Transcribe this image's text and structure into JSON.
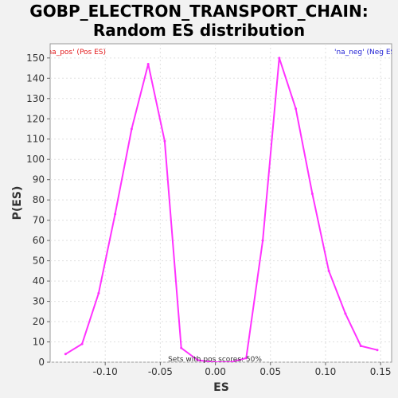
{
  "chart_data": {
    "type": "line",
    "title_line1": "GOBP_ELECTRON_TRANSPORT_CHAIN:",
    "title_line2": "Random ES distribution",
    "xlabel": "ES",
    "ylabel": "P(ES)",
    "xlim": [
      -0.15,
      0.16
    ],
    "ylim": [
      0,
      157
    ],
    "x_ticks": [
      -0.1,
      -0.05,
      0.0,
      0.05,
      0.1,
      0.15
    ],
    "x_tick_labels": [
      "-0.10",
      "-0.05",
      "0.00",
      "0.05",
      "0.10",
      "0.15"
    ],
    "y_ticks": [
      0,
      10,
      20,
      30,
      40,
      50,
      60,
      70,
      80,
      90,
      100,
      110,
      120,
      130,
      140,
      150
    ],
    "y_tick_labels": [
      "0",
      "10",
      "20",
      "30",
      "40",
      "50",
      "60",
      "70",
      "80",
      "90",
      "100",
      "110",
      "120",
      "130",
      "140",
      "150"
    ],
    "grid": true,
    "series": [
      {
        "color": "#ff33ff",
        "x": [
          -0.136,
          -0.121,
          -0.106,
          -0.091,
          -0.076,
          -0.061,
          -0.046,
          -0.031,
          -0.016,
          0.0,
          0.014,
          0.028,
          0.043,
          0.058,
          0.073,
          0.088,
          0.103,
          0.118,
          0.132,
          0.147
        ],
        "y": [
          4,
          9,
          34,
          73,
          115,
          147,
          109,
          7,
          1,
          0,
          0,
          2,
          60,
          150,
          125,
          83,
          45,
          24,
          8,
          6
        ]
      }
    ],
    "annotations": {
      "pos_label": "'na_pos' (Pos ES)",
      "neg_label": "'na_neg' (Neg ES)",
      "pos_color": "#e31a1c",
      "neg_color": "#1f1fd4",
      "center_text": "Sets with pos scores: 50%"
    }
  }
}
